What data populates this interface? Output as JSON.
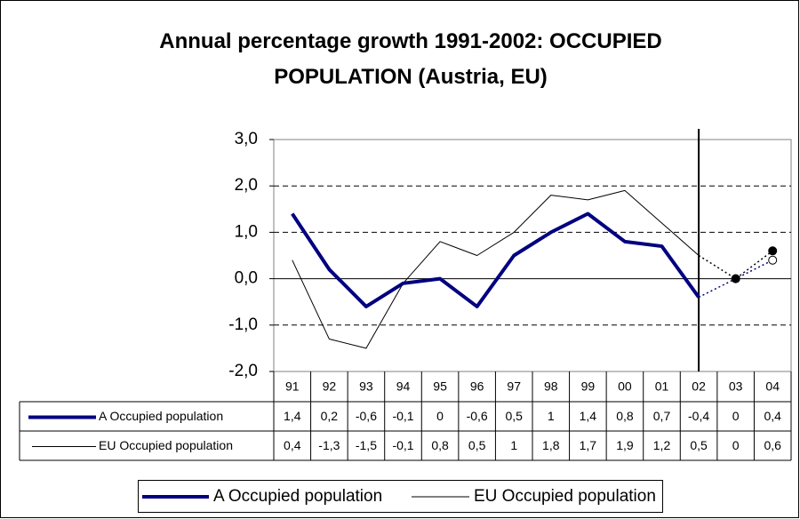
{
  "chart_data": {
    "type": "line",
    "title": "Annual percentage growth 1991-2002: OCCUPIED POPULATION (Austria, EU)",
    "categories": [
      "91",
      "92",
      "93",
      "94",
      "95",
      "96",
      "97",
      "98",
      "99",
      "00",
      "01",
      "02",
      "03",
      "04"
    ],
    "series": [
      {
        "name": "A Occupied population",
        "color": "#000080",
        "width": 4,
        "marker": "open",
        "values": [
          1.4,
          0.2,
          -0.6,
          -0.1,
          0,
          -0.6,
          0.5,
          1,
          1.4,
          0.8,
          0.7,
          -0.4,
          0,
          0.4
        ],
        "value_labels": [
          "1,4",
          "0,2",
          "-0,6",
          "-0,1",
          "0",
          "-0,6",
          "0,5",
          "1",
          "1,4",
          "0,8",
          "0,7",
          "-0,4",
          "0",
          "0,4"
        ]
      },
      {
        "name": "EU Occupied population",
        "color": "#000000",
        "width": 1,
        "marker": "filled",
        "values": [
          0.4,
          -1.3,
          -1.5,
          -0.1,
          0.8,
          0.5,
          1,
          1.8,
          1.7,
          1.9,
          1.2,
          0.5,
          0,
          0.6
        ],
        "value_labels": [
          "0,4",
          "-1,3",
          "-1,5",
          "-0,1",
          "0,8",
          "0,5",
          "1",
          "1,8",
          "1,7",
          "1,9",
          "1,2",
          "0,5",
          "0",
          "0,6"
        ]
      }
    ],
    "forecast_start_index": 11,
    "ylim": [
      -2,
      3
    ],
    "yticks": [
      {
        "value": -2,
        "label": "-2,0"
      },
      {
        "value": -1,
        "label": "-1,0"
      },
      {
        "value": 0,
        "label": "0,0"
      },
      {
        "value": 1,
        "label": "1,0"
      },
      {
        "value": 2,
        "label": "2,0"
      },
      {
        "value": 3,
        "label": "3,0"
      }
    ],
    "grid": true,
    "data_table": true,
    "legend": "bottom"
  }
}
